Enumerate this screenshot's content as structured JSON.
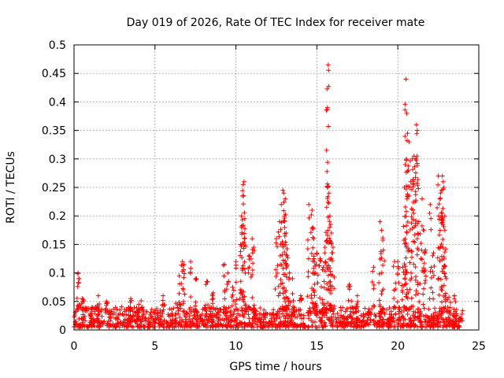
{
  "chart_data": {
    "type": "scatter",
    "title": "Day 019 of 2026, Rate Of TEC Index for receiver mate",
    "xlabel": "GPS time / hours",
    "ylabel": "ROTI / TECUs",
    "xlim": [
      0,
      25
    ],
    "ylim": [
      0,
      0.5
    ],
    "xticks": [
      "0",
      "5",
      "10",
      "15",
      "20",
      "25"
    ],
    "yticks": [
      "0",
      "0.05",
      "0.1",
      "0.15",
      "0.2",
      "0.25",
      "0.3",
      "0.35",
      "0.4",
      "0.45",
      "0.5"
    ],
    "grid": true,
    "marker": "+",
    "colors": {
      "series": "#ff0000",
      "grid": "#a0a0a0",
      "axis": "#000000"
    },
    "series": [
      {
        "baseline_band": [
          0.005,
          0.04
        ],
        "x": [
          0.25,
          0.3,
          0.5,
          1.5,
          2.0,
          3.5,
          4.0,
          5.5,
          6.5,
          6.7,
          6.8,
          7.2,
          7.5,
          8.2,
          8.6,
          9.3,
          9.5,
          9.8,
          10.0,
          10.3,
          10.35,
          10.4,
          10.45,
          10.5,
          10.55,
          10.8,
          11.0,
          11.1,
          12.5,
          12.7,
          12.8,
          12.9,
          12.95,
          13.0,
          13.05,
          13.1,
          13.15,
          13.3,
          13.5,
          14.0,
          14.5,
          14.7,
          14.75,
          14.8,
          14.85,
          14.9,
          15.0,
          15.2,
          15.4,
          15.5,
          15.6,
          15.65,
          15.7,
          15.75,
          15.8,
          15.85,
          15.9,
          16.0,
          17.0,
          17.5,
          18.5,
          18.9,
          19.0,
          19.1,
          19.8,
          20.0,
          20.3,
          20.4,
          20.45,
          20.5,
          20.55,
          20.6,
          20.7,
          20.8,
          20.9,
          21.0,
          21.1,
          21.15,
          21.2,
          21.3,
          21.5,
          21.6,
          21.7,
          22.0,
          22.2,
          22.5,
          22.6,
          22.7,
          22.75,
          22.8,
          22.85,
          22.9,
          23.0,
          23.5
        ],
        "y": [
          0.1,
          0.09,
          0.055,
          0.06,
          0.05,
          0.055,
          0.045,
          0.06,
          0.095,
          0.12,
          0.115,
          0.12,
          0.09,
          0.085,
          0.065,
          0.115,
          0.1,
          0.075,
          0.12,
          0.15,
          0.2,
          0.235,
          0.255,
          0.26,
          0.195,
          0.13,
          0.16,
          0.145,
          0.16,
          0.19,
          0.22,
          0.245,
          0.24,
          0.2,
          0.23,
          0.17,
          0.13,
          0.1,
          0.09,
          0.06,
          0.22,
          0.21,
          0.18,
          0.16,
          0.12,
          0.1,
          0.135,
          0.125,
          0.11,
          0.145,
          0.315,
          0.39,
          0.465,
          0.24,
          0.2,
          0.185,
          0.17,
          0.145,
          0.08,
          0.06,
          0.11,
          0.19,
          0.175,
          0.14,
          0.12,
          0.12,
          0.11,
          0.25,
          0.29,
          0.44,
          0.38,
          0.345,
          0.33,
          0.26,
          0.3,
          0.305,
          0.3,
          0.36,
          0.35,
          0.19,
          0.23,
          0.175,
          0.14,
          0.22,
          0.135,
          0.27,
          0.23,
          0.245,
          0.27,
          0.26,
          0.25,
          0.2,
          0.09,
          0.06
        ]
      }
    ]
  }
}
